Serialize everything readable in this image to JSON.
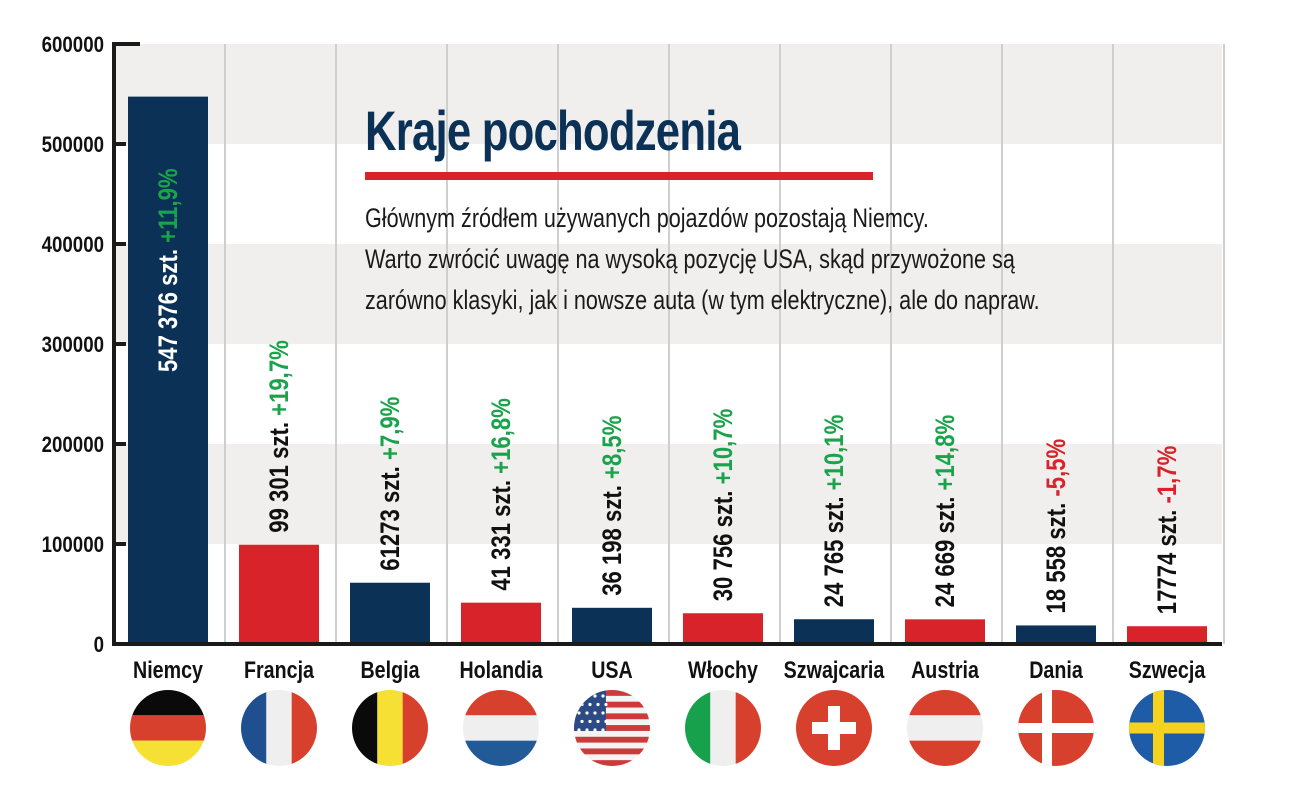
{
  "chart_data": {
    "type": "bar",
    "title": "Kraje pochodzenia",
    "subtitle": [
      "Głównym źródłem używanych pojazdów pozostają Niemcy.",
      "Warto zwrócić uwagę na wysoką pozycję USA, skąd przywożone są",
      "zarówno klasyki, jak i nowsze auta (w tym elektryczne), ale do napraw."
    ],
    "categories": [
      "Niemcy",
      "Francja",
      "Belgia",
      "Holandia",
      "USA",
      "Włochy",
      "Szwajcaria",
      "Austria",
      "Dania",
      "Szwecja"
    ],
    "values": [
      547376,
      99301,
      61273,
      41331,
      36198,
      30756,
      24765,
      24669,
      18558,
      17774
    ],
    "value_labels": [
      "547 376 szt.",
      "99 301 szt.",
      "61273 szt.",
      "41 331 szt.",
      "36 198 szt.",
      "30 756 szt.",
      "24 765 szt.",
      "24 669 szt.",
      "18 558 szt.",
      "17774 szt."
    ],
    "change_labels": [
      "+11,9%",
      "+19,7%",
      "+7,9%",
      "+16,8%",
      "+8,5%",
      "+10,7%",
      "+10,1%",
      "+14,8%",
      "-5,5%",
      "-1,7%"
    ],
    "flags": [
      "germany-flag",
      "france-flag",
      "belgium-flag",
      "netherlands-flag",
      "usa-flag",
      "italy-flag",
      "switzerland-flag",
      "austria-flag",
      "denmark-flag",
      "sweden-flag"
    ],
    "ylim": [
      0,
      600000
    ],
    "yticks": [
      "0",
      "100000",
      "200000",
      "300000",
      "400000",
      "500000",
      "600000"
    ],
    "xlabel": "",
    "ylabel": "",
    "grid": true,
    "colors": {
      "bar_primary": "#0b3156",
      "bar_secondary": "#d8232a",
      "positive": "#1aa34a",
      "negative": "#d8232a",
      "band": "#f0efee"
    }
  }
}
